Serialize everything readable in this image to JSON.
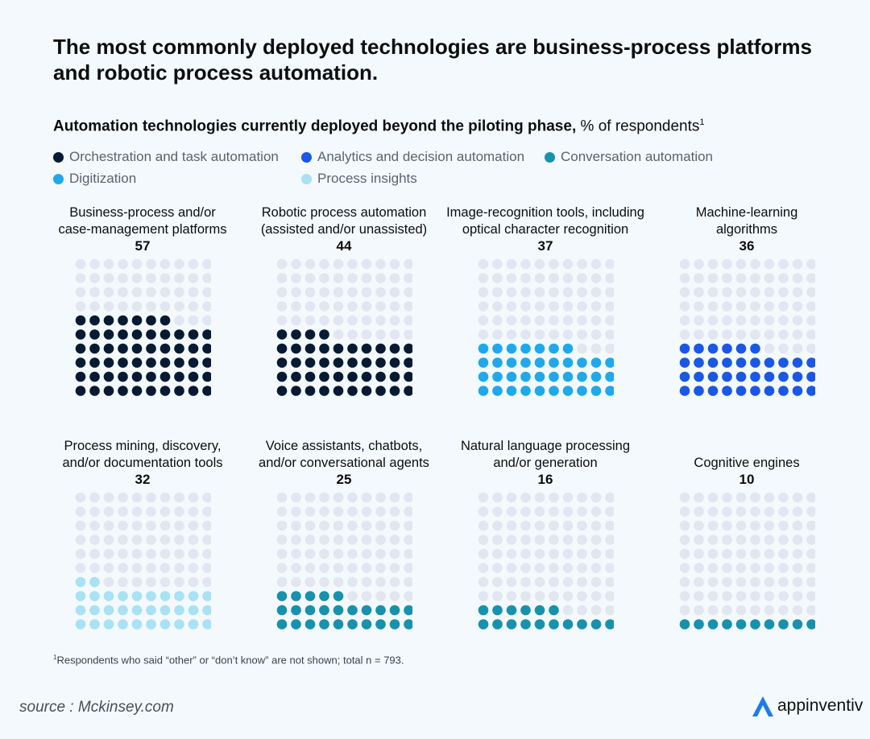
{
  "title": "The most commonly deployed technologies are business-process platforms and robotic process automation.",
  "subtitle_bold": "Automation technologies currently deployed beyond the piloting phase,",
  "subtitle_rest": "% of respondents",
  "subtitle_sup": "1",
  "legend": [
    {
      "label": "Orchestration and task automation",
      "color": "#071a33"
    },
    {
      "label": "Analytics and decision automation",
      "color": "#1b57e6"
    },
    {
      "label": "Conversation automation",
      "color": "#1891ad"
    },
    {
      "label": "Digitization",
      "color": "#1fa9ec"
    },
    {
      "label": "Process insights",
      "color": "#a9e1f5"
    }
  ],
  "empty_dot_color": "#e2e6f0",
  "chart_data": {
    "type": "waffle",
    "title": "Automation technologies currently deployed beyond the piloting phase, % of respondents",
    "unit": "% of respondents",
    "categories": [
      {
        "label_lines": [
          "Business-process and/or",
          "case-management platforms"
        ],
        "value": 57,
        "group": "Orchestration and task automation"
      },
      {
        "label_lines": [
          "Robotic process automation",
          "(assisted and/or unassisted)"
        ],
        "value": 44,
        "group": "Orchestration and task automation"
      },
      {
        "label_lines": [
          "Image-recognition tools, including",
          "optical character recognition"
        ],
        "value": 37,
        "group": "Digitization"
      },
      {
        "label_lines": [
          "Machine-learning",
          "algorithms"
        ],
        "value": 36,
        "group": "Analytics and decision automation"
      },
      {
        "label_lines": [
          "Process mining, discovery,",
          "and/or documentation tools"
        ],
        "value": 32,
        "group": "Process insights"
      },
      {
        "label_lines": [
          "Voice assistants, chatbots,",
          "and/or conversational agents"
        ],
        "value": 25,
        "group": "Conversation automation"
      },
      {
        "label_lines": [
          "Natural language processing",
          "and/or generation"
        ],
        "value": 16,
        "group": "Conversation automation"
      },
      {
        "label_lines": [
          "",
          "Cognitive engines"
        ],
        "value": 10,
        "group": "Conversation automation"
      }
    ]
  },
  "footnote_sup": "1",
  "footnote": "Respondents who said “other” or “don’t know” are not shown; total n = 793.",
  "source": "source : Mckinsey.com",
  "brand": "appinventiv",
  "brand_color": "#1e7bea"
}
